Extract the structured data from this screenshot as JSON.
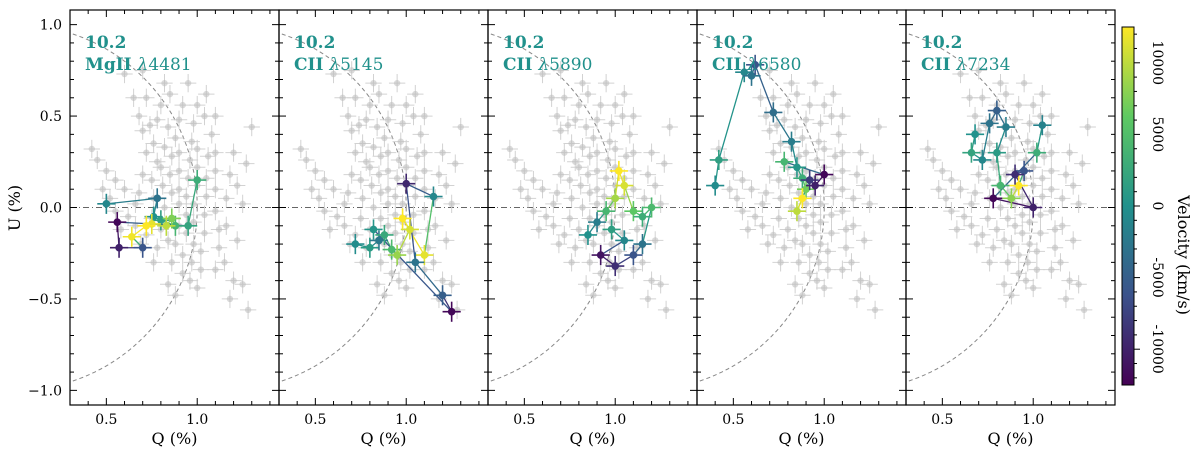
{
  "figure": {
    "colorbar_label": "Velocity (km/s)",
    "ylabel": "U (%)",
    "xlabel": "Q (%)"
  },
  "chart_data": {
    "type": "scatter",
    "xlabel": "Q (%)",
    "ylabel": "U (%)",
    "xlim": [
      0.3,
      1.45
    ],
    "ylim": [
      -1.08,
      1.08
    ],
    "xticks": [
      0.5,
      1.0
    ],
    "yticks": [
      -1.0,
      -0.5,
      0.0,
      0.5,
      1.0
    ],
    "xtick_labels": [
      "0.5",
      "1.0"
    ],
    "ytick_labels": [
      "−1.0",
      "−0.5",
      "0.0",
      "0.5",
      "1.0"
    ],
    "reference_circle_radius": 1.0,
    "colorbar": {
      "label": "Velocity (km/s)",
      "range": [
        -12500,
        12500
      ],
      "ticks": [
        -10000,
        -5000,
        0,
        5000,
        10000
      ],
      "tick_labels": [
        "-10000",
        "-5000",
        "0",
        "5000",
        "10000"
      ],
      "colormap": [
        "#440154",
        "#3b528b",
        "#21918c",
        "#5ec962",
        "#fde725"
      ]
    },
    "accent_color": "#21918c",
    "background_points_color": "#bbbbbb",
    "background_points": [
      [
        0.42,
        0.32
      ],
      [
        0.45,
        0.26
      ],
      [
        0.5,
        0.2
      ],
      [
        0.55,
        0.15
      ],
      [
        0.6,
        0.1
      ],
      [
        0.62,
        -0.05
      ],
      [
        0.58,
        -0.12
      ],
      [
        0.55,
        -0.02
      ],
      [
        0.52,
        0.05
      ],
      [
        0.48,
        0.1
      ],
      [
        0.65,
        0.6
      ],
      [
        0.6,
        0.73
      ],
      [
        0.7,
        0.75
      ],
      [
        0.72,
        0.6
      ],
      [
        0.68,
        0.5
      ],
      [
        0.7,
        0.42
      ],
      [
        0.74,
        0.45
      ],
      [
        0.72,
        0.3
      ],
      [
        0.7,
        0.18
      ],
      [
        0.68,
        0.08
      ],
      [
        0.66,
        0.02
      ],
      [
        0.66,
        -0.1
      ],
      [
        0.69,
        -0.2
      ],
      [
        0.72,
        -0.15
      ],
      [
        0.75,
        -0.06
      ],
      [
        0.76,
        0.05
      ],
      [
        0.75,
        0.15
      ],
      [
        0.78,
        0.25
      ],
      [
        0.76,
        0.35
      ],
      [
        0.78,
        0.48
      ],
      [
        0.8,
        0.56
      ],
      [
        0.82,
        0.68
      ],
      [
        0.84,
        0.44
      ],
      [
        0.82,
        0.33
      ],
      [
        0.8,
        0.22
      ],
      [
        0.81,
        0.12
      ],
      [
        0.82,
        0.0
      ],
      [
        0.8,
        -0.12
      ],
      [
        0.78,
        -0.22
      ],
      [
        0.76,
        -0.3
      ],
      [
        0.84,
        -0.18
      ],
      [
        0.86,
        -0.06
      ],
      [
        0.86,
        0.08
      ],
      [
        0.85,
        0.18
      ],
      [
        0.86,
        0.28
      ],
      [
        0.88,
        0.38
      ],
      [
        0.9,
        0.48
      ],
      [
        0.92,
        0.56
      ],
      [
        0.9,
        0.3
      ],
      [
        0.9,
        0.2
      ],
      [
        0.9,
        0.1
      ],
      [
        0.9,
        0.02
      ],
      [
        0.9,
        -0.1
      ],
      [
        0.88,
        -0.2
      ],
      [
        0.86,
        -0.3
      ],
      [
        0.84,
        -0.42
      ],
      [
        0.88,
        -0.48
      ],
      [
        0.92,
        -0.36
      ],
      [
        0.92,
        -0.26
      ],
      [
        0.94,
        -0.14
      ],
      [
        0.94,
        -0.04
      ],
      [
        0.94,
        0.06
      ],
      [
        0.95,
        0.16
      ],
      [
        0.96,
        0.26
      ],
      [
        0.97,
        0.36
      ],
      [
        0.98,
        0.46
      ],
      [
        1.0,
        0.56
      ],
      [
        1.0,
        0.32
      ],
      [
        1.0,
        0.22
      ],
      [
        1.0,
        0.12
      ],
      [
        0.98,
        0.02
      ],
      [
        0.98,
        -0.08
      ],
      [
        0.98,
        -0.2
      ],
      [
        0.97,
        -0.3
      ],
      [
        0.96,
        -0.4
      ],
      [
        1.0,
        -0.44
      ],
      [
        1.02,
        -0.34
      ],
      [
        1.02,
        -0.24
      ],
      [
        1.04,
        -0.14
      ],
      [
        1.04,
        -0.04
      ],
      [
        1.05,
        0.06
      ],
      [
        1.05,
        0.16
      ],
      [
        1.06,
        0.28
      ],
      [
        1.08,
        0.4
      ],
      [
        1.04,
        0.5
      ],
      [
        1.1,
        0.5
      ],
      [
        1.1,
        0.3
      ],
      [
        1.1,
        0.2
      ],
      [
        1.1,
        0.1
      ],
      [
        1.1,
        -0.02
      ],
      [
        1.12,
        -0.12
      ],
      [
        1.12,
        -0.22
      ],
      [
        1.1,
        -0.34
      ],
      [
        1.15,
        -0.3
      ],
      [
        1.16,
        -0.1
      ],
      [
        1.16,
        0.05
      ],
      [
        1.18,
        0.18
      ],
      [
        1.2,
        0.3
      ],
      [
        1.22,
        0.12
      ],
      [
        1.25,
        0.02
      ],
      [
        1.22,
        -0.18
      ],
      [
        1.2,
        -0.4
      ],
      [
        1.18,
        -0.5
      ],
      [
        1.25,
        -0.42
      ],
      [
        1.28,
        -0.56
      ],
      [
        1.3,
        0.44
      ],
      [
        1.27,
        0.24
      ],
      [
        1.05,
        0.62
      ],
      [
        0.85,
        0.62
      ],
      [
        0.95,
        0.68
      ]
    ],
    "panels": [
      {
        "epoch": "10.2",
        "line_prefix": "MgII ",
        "line_symbol": "λ",
        "line_wavelength": "4481",
        "points": [
          {
            "q": 0.5,
            "u": 0.02,
            "v": -1000
          },
          {
            "q": 0.78,
            "u": 0.05,
            "v": -3000
          },
          {
            "q": 0.76,
            "u": -0.05,
            "v": 0
          },
          {
            "q": 0.8,
            "u": -0.07,
            "v": 1500
          },
          {
            "q": 0.88,
            "u": -0.1,
            "v": 4000
          },
          {
            "q": 0.86,
            "u": -0.06,
            "v": 7500
          },
          {
            "q": 0.83,
            "u": -0.1,
            "v": 10000
          },
          {
            "q": 0.75,
            "u": -0.09,
            "v": 11500
          },
          {
            "q": 0.72,
            "u": -0.1,
            "v": 12500
          },
          {
            "q": 0.64,
            "u": -0.16,
            "v": 12000
          },
          {
            "q": 0.7,
            "u": -0.22,
            "v": -6000
          },
          {
            "q": 0.57,
            "u": -0.22,
            "v": -10000
          },
          {
            "q": 0.56,
            "u": -0.08,
            "v": -12000
          },
          {
            "q": 0.95,
            "u": -0.1,
            "v": 2000
          },
          {
            "q": 1.0,
            "u": 0.15,
            "v": 3000
          }
        ]
      },
      {
        "epoch": "10.2",
        "line_prefix": "CII ",
        "line_symbol": "λ",
        "line_wavelength": "5145",
        "points": [
          {
            "q": 0.72,
            "u": -0.2,
            "v": -500
          },
          {
            "q": 0.8,
            "u": -0.22,
            "v": 1000
          },
          {
            "q": 0.85,
            "u": -0.18,
            "v": -2500
          },
          {
            "q": 0.88,
            "u": -0.15,
            "v": 2500
          },
          {
            "q": 0.92,
            "u": -0.23,
            "v": 4500
          },
          {
            "q": 0.95,
            "u": -0.26,
            "v": 8500
          },
          {
            "q": 1.02,
            "u": -0.12,
            "v": 11000
          },
          {
            "q": 0.98,
            "u": -0.06,
            "v": 12500
          },
          {
            "q": 1.1,
            "u": -0.26,
            "v": 11500
          },
          {
            "q": 1.15,
            "u": 0.06,
            "v": -1000
          },
          {
            "q": 1.0,
            "u": 0.13,
            "v": -9500
          },
          {
            "q": 1.05,
            "u": -0.3,
            "v": -3000
          },
          {
            "q": 1.2,
            "u": -0.48,
            "v": -5000
          },
          {
            "q": 1.25,
            "u": -0.57,
            "v": -12000
          },
          {
            "q": 0.82,
            "u": -0.12,
            "v": 500
          }
        ]
      },
      {
        "epoch": "10.2",
        "line_prefix": "CII ",
        "line_symbol": "λ",
        "line_wavelength": "5890",
        "points": [
          {
            "q": 0.85,
            "u": -0.15,
            "v": 0
          },
          {
            "q": 0.9,
            "u": -0.08,
            "v": -2000
          },
          {
            "q": 0.95,
            "u": -0.02,
            "v": 4000
          },
          {
            "q": 1.0,
            "u": 0.05,
            "v": 9000
          },
          {
            "q": 1.02,
            "u": 0.2,
            "v": 12500
          },
          {
            "q": 1.05,
            "u": 0.12,
            "v": 11000
          },
          {
            "q": 1.1,
            "u": -0.02,
            "v": 6000
          },
          {
            "q": 1.15,
            "u": -0.05,
            "v": 3000
          },
          {
            "q": 1.2,
            "u": 0.0,
            "v": 4500
          },
          {
            "q": 1.15,
            "u": -0.2,
            "v": -3000
          },
          {
            "q": 1.1,
            "u": -0.26,
            "v": -6000
          },
          {
            "q": 1.0,
            "u": -0.32,
            "v": -9000
          },
          {
            "q": 0.92,
            "u": -0.26,
            "v": -11000
          },
          {
            "q": 1.05,
            "u": -0.18,
            "v": -1000
          },
          {
            "q": 0.98,
            "u": -0.12,
            "v": 1500
          }
        ]
      },
      {
        "epoch": "10.2",
        "line_prefix": "CII ",
        "line_symbol": "λ",
        "line_wavelength": "6580",
        "points": [
          {
            "q": 0.4,
            "u": 0.12,
            "v": -500
          },
          {
            "q": 0.42,
            "u": 0.26,
            "v": 1500
          },
          {
            "q": 0.56,
            "u": 0.74,
            "v": -1000
          },
          {
            "q": 0.6,
            "u": 0.72,
            "v": -3000
          },
          {
            "q": 0.62,
            "u": 0.78,
            "v": -6000
          },
          {
            "q": 0.72,
            "u": 0.52,
            "v": -3500
          },
          {
            "q": 0.82,
            "u": 0.36,
            "v": -2000
          },
          {
            "q": 0.85,
            "u": 0.22,
            "v": 500
          },
          {
            "q": 0.88,
            "u": 0.16,
            "v": 3000
          },
          {
            "q": 0.9,
            "u": 0.1,
            "v": 7000
          },
          {
            "q": 0.85,
            "u": -0.02,
            "v": 10000
          },
          {
            "q": 0.88,
            "u": 0.05,
            "v": 12500
          },
          {
            "q": 0.92,
            "u": 0.15,
            "v": -8000
          },
          {
            "q": 0.95,
            "u": 0.12,
            "v": -10000
          },
          {
            "q": 1.0,
            "u": 0.18,
            "v": -12000
          },
          {
            "q": 0.78,
            "u": 0.25,
            "v": 4000
          }
        ]
      },
      {
        "epoch": "10.2",
        "line_prefix": "CII ",
        "line_symbol": "λ",
        "line_wavelength": "7234",
        "points": [
          {
            "q": 0.68,
            "u": 0.4,
            "v": 0
          },
          {
            "q": 0.66,
            "u": 0.3,
            "v": 2000
          },
          {
            "q": 0.72,
            "u": 0.26,
            "v": -1000
          },
          {
            "q": 0.76,
            "u": 0.46,
            "v": -3000
          },
          {
            "q": 0.8,
            "u": 0.53,
            "v": -5000
          },
          {
            "q": 0.85,
            "u": 0.44,
            "v": -2000
          },
          {
            "q": 0.8,
            "u": 0.3,
            "v": 1000
          },
          {
            "q": 0.82,
            "u": 0.12,
            "v": 4000
          },
          {
            "q": 0.88,
            "u": 0.05,
            "v": 8000
          },
          {
            "q": 0.92,
            "u": 0.12,
            "v": 12500
          },
          {
            "q": 0.95,
            "u": 0.2,
            "v": -6000
          },
          {
            "q": 0.9,
            "u": 0.18,
            "v": -9000
          },
          {
            "q": 1.0,
            "u": 0.0,
            "v": -10000
          },
          {
            "q": 0.78,
            "u": 0.05,
            "v": -12000
          },
          {
            "q": 1.02,
            "u": 0.3,
            "v": 3000
          },
          {
            "q": 1.05,
            "u": 0.45,
            "v": -1500
          }
        ]
      }
    ]
  }
}
